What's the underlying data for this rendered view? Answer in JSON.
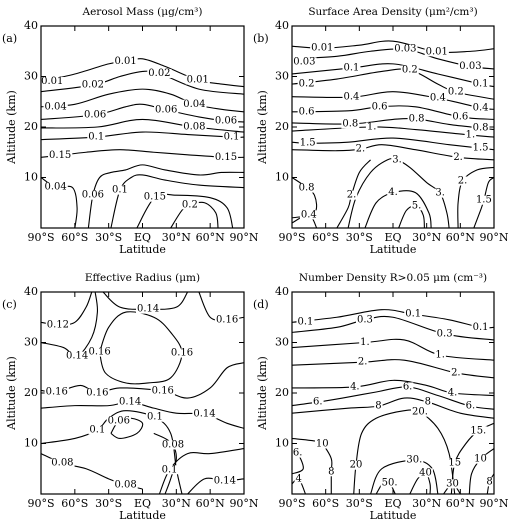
{
  "chart_data": [
    {
      "type": "contour",
      "panel_label": "(a)",
      "title": "Aerosol Mass (μg/cm³)",
      "xlabel": "Latitude",
      "ylabel": "Altitude (km)",
      "xlim": [
        -90,
        90
      ],
      "ylim": [
        0,
        40
      ],
      "xticks": [
        {
          "value": -90,
          "label": "90°S"
        },
        {
          "value": -60,
          "label": "60°S"
        },
        {
          "value": -30,
          "label": "30°S"
        },
        {
          "value": 0,
          "label": "EQ"
        },
        {
          "value": 30,
          "label": "30°N"
        },
        {
          "value": 60,
          "label": "60°N"
        },
        {
          "value": 90,
          "label": "90°N"
        }
      ],
      "yticks": [
        10,
        20,
        30,
        40
      ],
      "color": "#000000",
      "contour_labels": [
        0.01,
        0.01,
        0.01,
        0.02,
        0.02,
        0.04,
        0.04,
        0.06,
        0.06,
        0.06,
        0.08,
        0.1,
        0.1,
        0.15,
        0.15,
        0.04,
        0.06,
        0.1,
        0.15,
        0.2
      ]
    },
    {
      "type": "contour",
      "panel_label": "(b)",
      "title": "Surface Area Density (μm²/cm³)",
      "xlabel": "Latitude",
      "ylabel": "Altitude (km)",
      "xlim": [
        -90,
        90
      ],
      "ylim": [
        0,
        40
      ],
      "xticks": [
        {
          "value": -90,
          "label": "90°S"
        },
        {
          "value": -60,
          "label": "60°S"
        },
        {
          "value": -30,
          "label": "30°S"
        },
        {
          "value": 0,
          "label": "EQ"
        },
        {
          "value": 30,
          "label": "30°N"
        },
        {
          "value": 60,
          "label": "60°N"
        },
        {
          "value": 90,
          "label": "90°N"
        }
      ],
      "yticks": [
        10,
        20,
        30,
        40
      ],
      "color": "#000000",
      "contour_labels": [
        0.01,
        0.03,
        0.01,
        0.03,
        0.1,
        0.2,
        0.03,
        0.1,
        0.2,
        0.2,
        0.4,
        0.4,
        0.4,
        0.6,
        0.6,
        0.6,
        0.8,
        0.8,
        0.8,
        {
          "value": 1,
          "label": "1."
        },
        {
          "value": 1,
          "label": "1."
        },
        1.5,
        {
          "value": 2,
          "label": "2."
        },
        1.5,
        {
          "value": 3,
          "label": "3."
        },
        {
          "value": 2,
          "label": "2."
        },
        {
          "value": 2,
          "label": "2."
        },
        0.8,
        {
          "value": 2,
          "label": "2."
        },
        {
          "value": 4,
          "label": "4."
        },
        {
          "value": 3,
          "label": "3."
        },
        1.5,
        {
          "value": 5,
          "label": "5."
        },
        0.4
      ]
    },
    {
      "type": "contour",
      "panel_label": "(c)",
      "title": "Effective Radius (μm)",
      "xlabel": "Latitude",
      "ylabel": "Altitude (km)",
      "xlim": [
        -90,
        90
      ],
      "ylim": [
        0,
        40
      ],
      "xticks": [
        {
          "value": -90,
          "label": "90°S"
        },
        {
          "value": -60,
          "label": "60°S"
        },
        {
          "value": -30,
          "label": "30°S"
        },
        {
          "value": 0,
          "label": "EQ"
        },
        {
          "value": 30,
          "label": "30°N"
        },
        {
          "value": 60,
          "label": "60°N"
        },
        {
          "value": 90,
          "label": "90°N"
        }
      ],
      "yticks": [
        10,
        20,
        30,
        40
      ],
      "color": "#000000",
      "contour_labels": [
        0.14,
        0.12,
        0.16,
        0.16,
        0.14,
        0.16,
        0.16,
        0.16,
        0.16,
        0.14,
        0.14,
        0.1,
        0.06,
        0.1,
        0.08,
        0.08,
        0.1,
        0.08,
        0.14
      ]
    },
    {
      "type": "contour",
      "panel_label": "(d)",
      "title": "Number Density R>0.05 μm (cm⁻³)",
      "xlabel": "Latitude",
      "ylabel": "Altitude (km)",
      "xlim": [
        -90,
        90
      ],
      "ylim": [
        0,
        40
      ],
      "xticks": [
        {
          "value": -90,
          "label": "90°S"
        },
        {
          "value": -60,
          "label": "60°S"
        },
        {
          "value": -30,
          "label": "30°S"
        },
        {
          "value": 0,
          "label": "EQ"
        },
        {
          "value": 30,
          "label": "30°N"
        },
        {
          "value": 60,
          "label": "60°N"
        },
        {
          "value": 90,
          "label": "90°N"
        }
      ],
      "yticks": [
        10,
        20,
        30,
        40
      ],
      "color": "#000000",
      "contour_labels": [
        0.1,
        0.3,
        0.1,
        0.3,
        0.1,
        {
          "value": 1,
          "label": "1."
        },
        {
          "value": 1,
          "label": "1."
        },
        {
          "value": 2,
          "label": "2."
        },
        {
          "value": 2,
          "label": "2."
        },
        {
          "value": 4,
          "label": "4."
        },
        {
          "value": 6,
          "label": "6."
        },
        {
          "value": 4,
          "label": "4."
        },
        {
          "value": 6,
          "label": "6."
        },
        8,
        8,
        {
          "value": 6,
          "label": "6."
        },
        {
          "value": 20,
          "label": "20."
        },
        {
          "value": 15,
          "label": "15."
        },
        {
          "value": 6,
          "label": "6."
        },
        10,
        20,
        {
          "value": 30,
          "label": "30."
        },
        10,
        15,
        8,
        4,
        40,
        {
          "value": 50,
          "label": "50."
        },
        30,
        8
      ]
    }
  ]
}
